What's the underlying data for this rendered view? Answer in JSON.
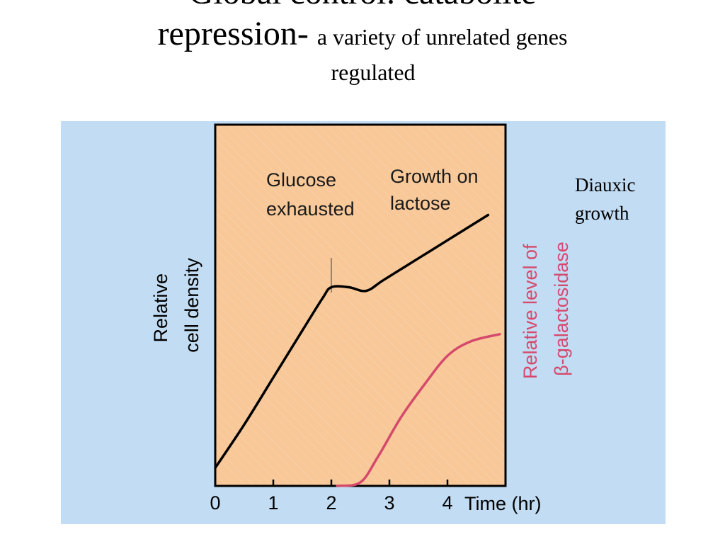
{
  "slide": {
    "title_line1": "Global control: catabolite",
    "title_line2": "repression-",
    "title_sub_line2": "a variety of unrelated genes",
    "title_sub_line3": "regulated"
  },
  "side_note": [
    "Diauxic",
    "growth"
  ],
  "chart_data": {
    "type": "line",
    "xlabel": "Time (hr)",
    "ylabel_left": [
      "Relative",
      "cell density"
    ],
    "ylabel_right": [
      "Relative level of",
      "β-galactosidase"
    ],
    "xlim": [
      0,
      5
    ],
    "x_ticks": [
      0,
      1,
      2,
      3,
      4
    ],
    "annotations": [
      {
        "text": [
          "Glucose",
          "exhausted"
        ],
        "x": 2.0
      },
      {
        "text": [
          "Growth on",
          "lactose"
        ]
      }
    ],
    "series": [
      {
        "axis": "left",
        "color": "#000000",
        "points": [
          [
            0,
            0.05
          ],
          [
            0.5,
            0.17
          ],
          [
            1,
            0.3
          ],
          [
            1.5,
            0.43
          ],
          [
            1.85,
            0.52
          ],
          [
            2.0,
            0.55
          ],
          [
            2.3,
            0.55
          ],
          [
            2.6,
            0.54
          ],
          [
            2.9,
            0.57
          ],
          [
            3.5,
            0.63
          ],
          [
            4.0,
            0.68
          ],
          [
            4.7,
            0.75
          ]
        ]
      },
      {
        "axis": "right",
        "color": "#d54a6c",
        "points": [
          [
            2.1,
            0.0
          ],
          [
            2.5,
            0.01
          ],
          [
            2.8,
            0.08
          ],
          [
            3.2,
            0.19
          ],
          [
            3.6,
            0.28
          ],
          [
            4.0,
            0.36
          ],
          [
            4.4,
            0.4
          ],
          [
            4.9,
            0.42
          ]
        ]
      }
    ],
    "colors": {
      "outer_background": "#c2dcf3",
      "plot_background": "#f8c898",
      "density_line": "#000000",
      "enzyme_line": "#d54a6c",
      "right_label": "#d54a6c"
    }
  }
}
